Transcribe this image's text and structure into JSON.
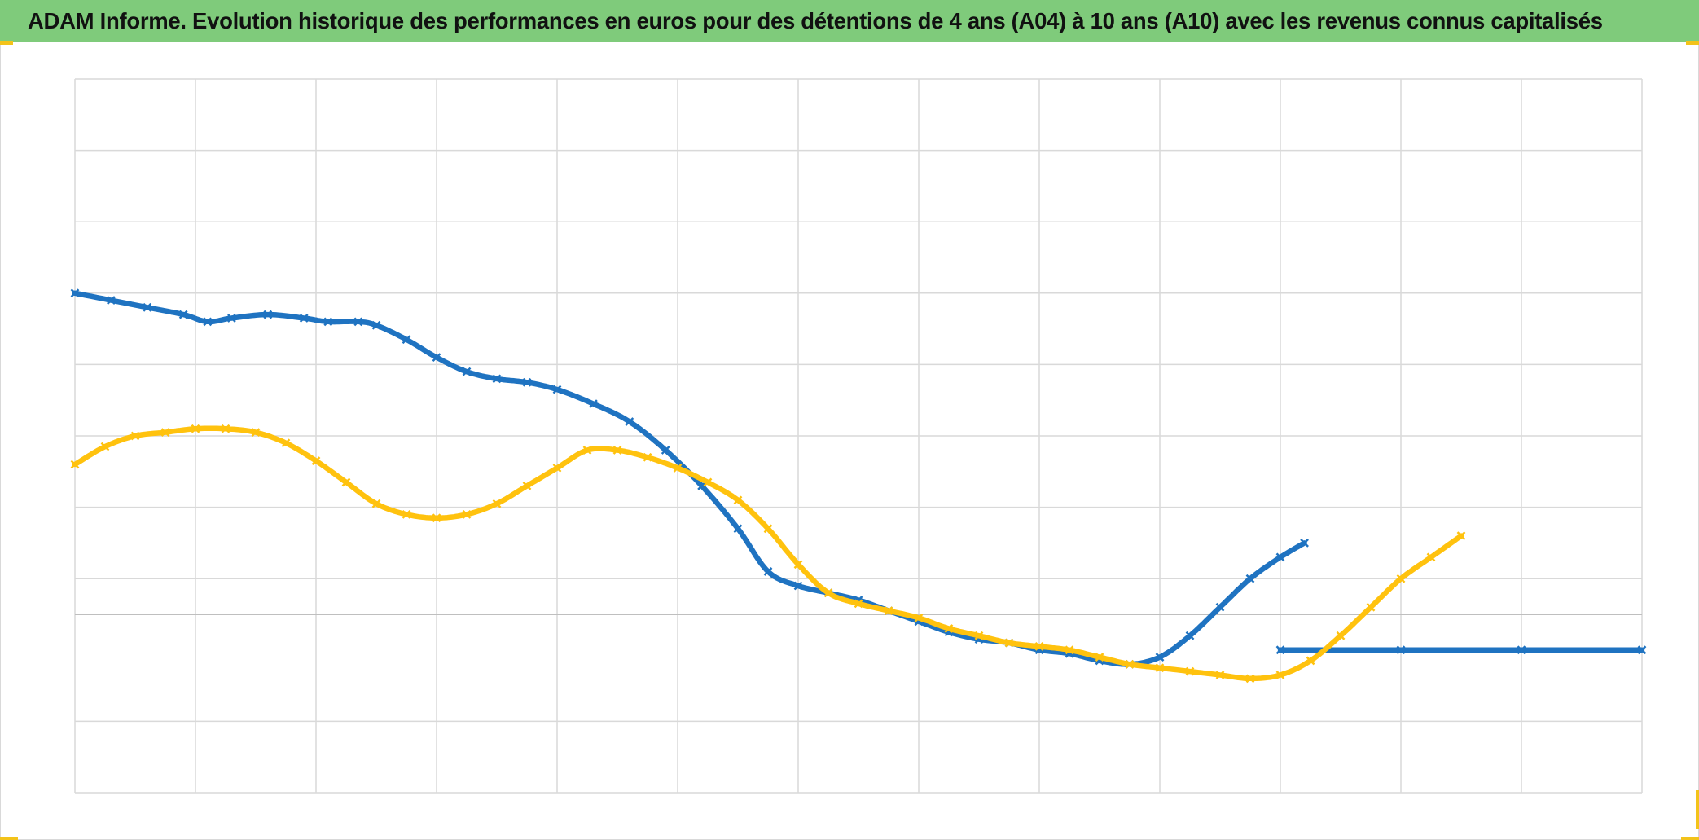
{
  "title": "ADAM Informe. Evolution historique des performances en euros pour des détentions de 4 ans (A04) à 10 ans (A10) avec les revenus connus capitalisés",
  "colors": {
    "title_bar": "#7fcb7b",
    "grid": "#d9d9d9",
    "zero_line": "#bfbfbf",
    "series_blue": "#1f73c1",
    "series_yellow": "#ffc20e",
    "corner_marks": "#f3c31a"
  },
  "chart_data": {
    "type": "line",
    "title": "ADAM Informe. Evolution historique des performances en euros pour des détentions de 4 ans (A04) à 10 ans (A10) avec les revenus connus capitalisés",
    "xlabel": "",
    "ylabel": "",
    "tick_labels_shown": false,
    "xlim": [
      0,
      13
    ],
    "ylim": [
      -2.5,
      7.5
    ],
    "x_gridlines": [
      0,
      1,
      2,
      3,
      4,
      5,
      6,
      7,
      8,
      9,
      10,
      11,
      12,
      13
    ],
    "y_gridlines": [
      -1.5,
      0.5,
      1.5,
      2.5,
      3.5,
      4.5,
      5.5,
      6.5
    ],
    "zero_line": 0,
    "grid": true,
    "legend": "none",
    "series": [
      {
        "color": "#1f73c1",
        "marker": "x",
        "points": [
          [
            0,
            4.5
          ],
          [
            0.3,
            4.4
          ],
          [
            0.6,
            4.3
          ],
          [
            0.9,
            4.2
          ],
          [
            1.1,
            4.1
          ],
          [
            1.3,
            4.15
          ],
          [
            1.6,
            4.2
          ],
          [
            1.9,
            4.15
          ],
          [
            2.1,
            4.1
          ],
          [
            2.35,
            4.1
          ],
          [
            2.5,
            4.05
          ],
          [
            2.75,
            3.85
          ],
          [
            3.0,
            3.6
          ],
          [
            3.25,
            3.4
          ],
          [
            3.5,
            3.3
          ],
          [
            3.75,
            3.25
          ],
          [
            4.0,
            3.15
          ],
          [
            4.3,
            2.95
          ],
          [
            4.6,
            2.7
          ],
          [
            4.9,
            2.3
          ],
          [
            5.2,
            1.8
          ],
          [
            5.5,
            1.2
          ],
          [
            5.75,
            0.6
          ],
          [
            6.0,
            0.4
          ],
          [
            6.25,
            0.3
          ],
          [
            6.5,
            0.2
          ],
          [
            6.75,
            0.05
          ],
          [
            7.0,
            -0.1
          ],
          [
            7.25,
            -0.25
          ],
          [
            7.5,
            -0.35
          ],
          [
            7.75,
            -0.4
          ],
          [
            8.0,
            -0.5
          ],
          [
            8.25,
            -0.55
          ],
          [
            8.5,
            -0.65
          ],
          [
            8.75,
            -0.7
          ],
          [
            9.0,
            -0.6
          ],
          [
            9.25,
            -0.3
          ],
          [
            9.5,
            0.1
          ],
          [
            9.75,
            0.5
          ],
          [
            10.0,
            0.8
          ],
          [
            10.2,
            1.0
          ]
        ]
      },
      {
        "color": "#1f73c1",
        "marker": "x",
        "points": [
          [
            10.0,
            -0.5
          ],
          [
            11.0,
            -0.5
          ],
          [
            12.0,
            -0.5
          ],
          [
            13.0,
            -0.5
          ]
        ]
      },
      {
        "color": "#ffc20e",
        "marker": "x",
        "points": [
          [
            0,
            2.1
          ],
          [
            0.25,
            2.35
          ],
          [
            0.5,
            2.5
          ],
          [
            0.75,
            2.55
          ],
          [
            1.0,
            2.6
          ],
          [
            1.25,
            2.6
          ],
          [
            1.5,
            2.55
          ],
          [
            1.75,
            2.4
          ],
          [
            2.0,
            2.15
          ],
          [
            2.25,
            1.85
          ],
          [
            2.5,
            1.55
          ],
          [
            2.75,
            1.4
          ],
          [
            3.0,
            1.35
          ],
          [
            3.25,
            1.4
          ],
          [
            3.5,
            1.55
          ],
          [
            3.75,
            1.8
          ],
          [
            4.0,
            2.05
          ],
          [
            4.25,
            2.3
          ],
          [
            4.5,
            2.3
          ],
          [
            4.75,
            2.2
          ],
          [
            5.0,
            2.05
          ],
          [
            5.25,
            1.85
          ],
          [
            5.5,
            1.6
          ],
          [
            5.75,
            1.2
          ],
          [
            6.0,
            0.7
          ],
          [
            6.25,
            0.3
          ],
          [
            6.5,
            0.15
          ],
          [
            6.75,
            0.05
          ],
          [
            7.0,
            -0.05
          ],
          [
            7.25,
            -0.2
          ],
          [
            7.5,
            -0.3
          ],
          [
            7.75,
            -0.4
          ],
          [
            8.0,
            -0.45
          ],
          [
            8.25,
            -0.5
          ],
          [
            8.5,
            -0.6
          ],
          [
            8.75,
            -0.7
          ],
          [
            9.0,
            -0.75
          ],
          [
            9.25,
            -0.8
          ],
          [
            9.5,
            -0.85
          ],
          [
            9.75,
            -0.9
          ],
          [
            10.0,
            -0.85
          ],
          [
            10.25,
            -0.65
          ],
          [
            10.5,
            -0.3
          ],
          [
            10.75,
            0.1
          ],
          [
            11.0,
            0.5
          ],
          [
            11.25,
            0.8
          ],
          [
            11.5,
            1.1
          ]
        ]
      }
    ]
  }
}
